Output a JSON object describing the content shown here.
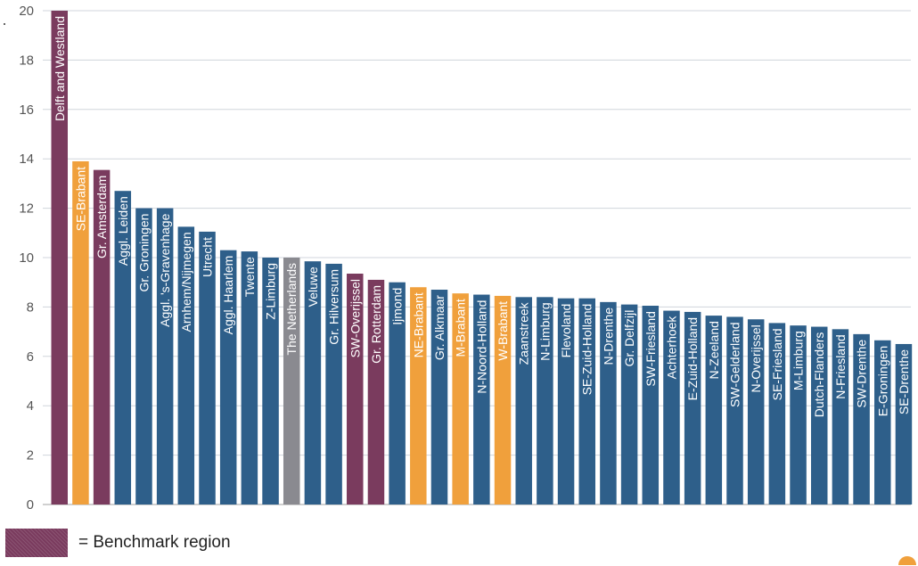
{
  "chart_data": {
    "type": "bar",
    "ylim": [
      0,
      20
    ],
    "yticks": [
      0,
      2,
      4,
      6,
      8,
      10,
      12,
      14,
      16,
      18,
      20
    ],
    "grid": true,
    "categories": [
      "Delft and Westland",
      "SE-Brabant",
      "Gr. Amsterdam",
      "Aggl. Leiden",
      "Gr. Groningen",
      "Aggl. 's-Gravenhage",
      "Arnhem/Nijmegen",
      "Utrecht",
      "Aggl. Haarlem",
      "Twente",
      "Z-Limburg",
      "The Netherlands",
      "Veluwe",
      "Gr. Hilversum",
      "SW-Overijssel",
      "Gr. Rotterdam",
      "Ijmond",
      "NE-Brabant",
      "Gr. Alkmaar",
      "M-Brabant",
      "N-Noord-Holland",
      "W-Brabant",
      "Zaanstreek",
      "N-Limburg",
      "Flevoland",
      "SE-Zuid-Holland",
      "N-Drenthe",
      "Gr. Delfzijl",
      "SW-Friesland",
      "Achterhoek",
      "E-Zuid-Holland",
      "N-Zeeland",
      "SW-Gelderland",
      "N-Overijssel",
      "SE-Friesland",
      "M-Limburg",
      "Dutch-Flanders",
      "N-Friesland",
      "SW-Drenthe",
      "E-Groningen",
      "SE-Drenthe"
    ],
    "values": [
      20.0,
      13.9,
      13.55,
      12.7,
      12.0,
      12.0,
      11.25,
      11.05,
      10.3,
      10.25,
      10.0,
      10.0,
      9.85,
      9.75,
      9.35,
      9.1,
      9.0,
      8.8,
      8.7,
      8.55,
      8.5,
      8.45,
      8.4,
      8.4,
      8.35,
      8.35,
      8.2,
      8.1,
      8.05,
      7.85,
      7.8,
      7.65,
      7.6,
      7.5,
      7.35,
      7.25,
      7.2,
      7.1,
      6.9,
      6.65,
      6.5
    ],
    "bar_groups": [
      "benchmark",
      "orange",
      "benchmark",
      "blue",
      "blue",
      "blue",
      "blue",
      "blue",
      "blue",
      "blue",
      "blue",
      "national",
      "blue",
      "blue",
      "benchmark",
      "benchmark",
      "blue",
      "orange",
      "blue",
      "orange",
      "blue",
      "orange",
      "blue",
      "blue",
      "blue",
      "blue",
      "blue",
      "blue",
      "blue",
      "blue",
      "blue",
      "blue",
      "blue",
      "blue",
      "blue",
      "blue",
      "blue",
      "blue",
      "blue",
      "blue",
      "blue"
    ],
    "colors": {
      "blue": "#2e5f8a",
      "orange": "#f0a03c",
      "benchmark": "#7a3b5e",
      "national": "#8a8a90",
      "grid": "#d0d5dc",
      "axis": "#a0a0a0"
    },
    "legend": {
      "label": "= Benchmark region",
      "color": "#7a3b5e"
    }
  }
}
